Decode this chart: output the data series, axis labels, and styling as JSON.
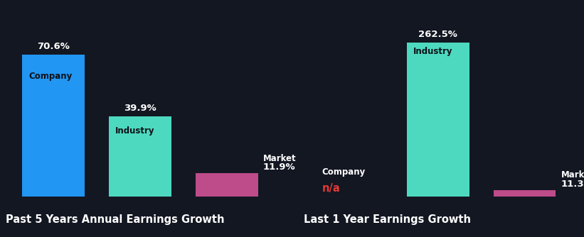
{
  "background_color": "#131722",
  "left_chart": {
    "title": "Past 5 Years Annual Earnings Growth",
    "bars": [
      {
        "label": "Company",
        "value": 70.6,
        "color": "#2196f3",
        "inside_label": "Company"
      },
      {
        "label": "Industry",
        "value": 39.9,
        "color": "#4dd9c0",
        "inside_label": "Industry"
      },
      {
        "label": "Market",
        "value": 11.9,
        "color": "#be4b8a",
        "inside_label": "Market"
      }
    ]
  },
  "right_chart": {
    "title": "Last 1 Year Earnings Growth",
    "bars": [
      {
        "label": "Company",
        "value": 0,
        "color": "#2196f3",
        "inside_label": "Company",
        "is_na": true
      },
      {
        "label": "Industry",
        "value": 262.5,
        "color": "#4dd9c0",
        "inside_label": "Industry"
      },
      {
        "label": "Market",
        "value": 11.3,
        "color": "#be4b8a",
        "inside_label": "Market"
      }
    ]
  },
  "bar_width": 0.72,
  "label_color": "#ffffff",
  "value_color": "#ffffff",
  "na_color": "#e53935",
  "title_fontsize": 10.5,
  "label_fontsize": 8.5,
  "value_fontsize": 9.5
}
